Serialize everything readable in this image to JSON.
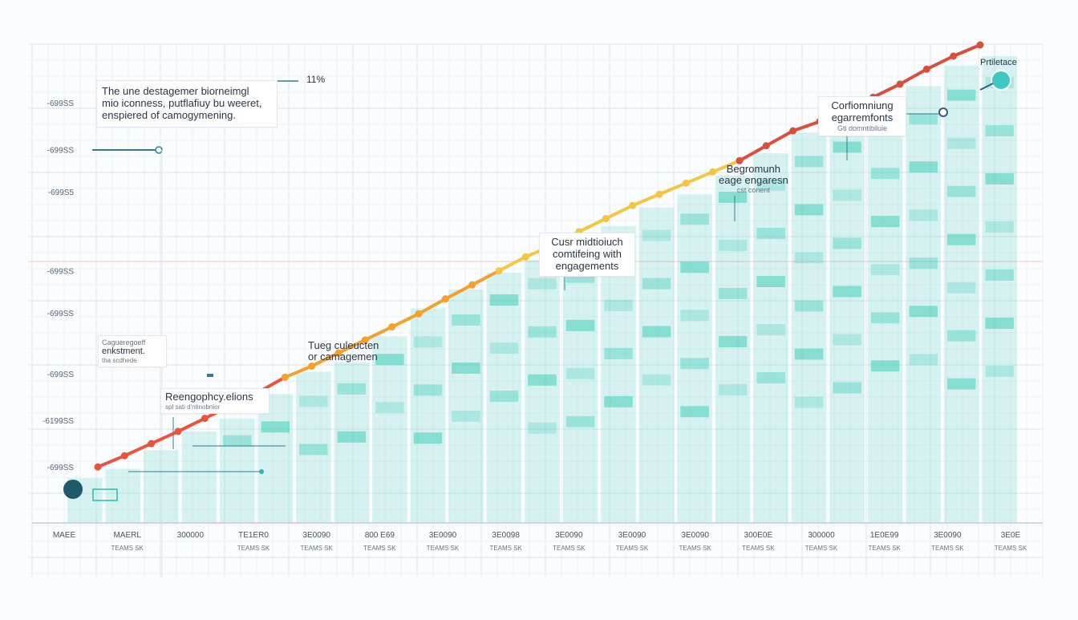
{
  "chart_data": {
    "type": "bar",
    "y_tick_labels": [
      "-699SS",
      "-699SS",
      "-699S5",
      "-699SS",
      "-699SS",
      "-699SS",
      "-6199SS",
      "-699SS"
    ],
    "y_tick_values": [
      450,
      400,
      355,
      270,
      225,
      160,
      110,
      60
    ],
    "ylim": [
      0,
      500
    ],
    "grid": true,
    "x_labels": [
      {
        "top": "MAEE",
        "bottom": ""
      },
      {
        "top": "MAERL",
        "bottom": "TEAMS SK"
      },
      {
        "top": "300000",
        "bottom": ""
      },
      {
        "top": "TE1ER0",
        "bottom": "TEAMS SK"
      },
      {
        "top": "3E0090",
        "bottom": "TEAMS SK"
      },
      {
        "top": "800 E69",
        "bottom": "TEAMS SK"
      },
      {
        "top": "3E0090",
        "bottom": "TEAMS SK"
      },
      {
        "top": "3E0098",
        "bottom": "TEAMS SK"
      },
      {
        "top": "3E0090",
        "bottom": "TEAMS SK"
      },
      {
        "top": "3E0090",
        "bottom": "TEAMS SK"
      },
      {
        "top": "3E0090",
        "bottom": "TEAMS SK"
      },
      {
        "top": "300E0E",
        "bottom": "TEAMS SK"
      },
      {
        "top": "300000",
        "bottom": "TEAMS SK"
      },
      {
        "top": "1E0E99",
        "bottom": "TEAMS SK"
      },
      {
        "top": "3E0090",
        "bottom": "TEAMS SK"
      },
      {
        "top": "3E0E",
        "bottom": "TEAMS SK"
      }
    ],
    "bars": [
      48,
      58,
      78,
      98,
      112,
      138,
      162,
      172,
      200,
      230,
      250,
      268,
      282,
      300,
      318,
      338,
      352,
      372,
      396,
      418,
      430,
      450,
      468,
      490,
      500
    ],
    "line_values": [
      60,
      72,
      85,
      98,
      112,
      126,
      140,
      156,
      168,
      182,
      196,
      210,
      224,
      240,
      255,
      270,
      285,
      297,
      312,
      326,
      340,
      352,
      364,
      376,
      388,
      404,
      420,
      430,
      442,
      456,
      470,
      486,
      500,
      512
    ],
    "series_colors": {
      "start": "#e8543d",
      "mid": "#f5a02a",
      "late": "#f2c640",
      "end": "#d94f3d",
      "bar": "#33c9b5",
      "axis": "#8fa3b1"
    },
    "annotations": [
      {
        "lines": [
          "The une destagemer biorneimgl",
          "mio iconness, putflafiuy bu weeret,",
          "enspiered of camogymening."
        ],
        "value": "11%"
      },
      {
        "lines": [
          "Cagueregoeff",
          "enkstment.",
          "tha scdhede"
        ]
      },
      {
        "lines": [
          "Reengophcy.elions",
          "spl sati d'ntinobnior"
        ]
      },
      {
        "lines": [
          "Tueg culeucten",
          "or camagemen"
        ]
      },
      {
        "lines": [
          "Cusr midtioiuch",
          "comtifeing with",
          "engagements"
        ]
      },
      {
        "lines": [
          "Begromunh",
          "eage engaresn",
          "cst conent"
        ]
      },
      {
        "lines": [
          "Corfiomniung",
          "egarremfonts",
          "Gti domntibiluie"
        ]
      }
    ],
    "end_label": "Prtiletace"
  }
}
